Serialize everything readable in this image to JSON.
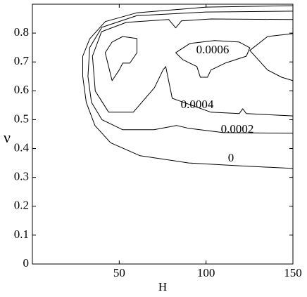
{
  "chart_data": {
    "type": "contour",
    "xlabel": "H",
    "ylabel": "ν",
    "xlim": [
      0,
      150
    ],
    "xticks": [
      50,
      100,
      150
    ],
    "ylim": [
      0,
      0.9
    ],
    "yticks": [
      0,
      0.1,
      0.2,
      0.3,
      0.4,
      0.5,
      0.6,
      0.7,
      0.8
    ],
    "color": "#000000",
    "levels": [
      0,
      0.0002,
      0.0004,
      0.0006
    ],
    "contours": [
      {
        "level": 0,
        "x": [
          150,
          100,
          60,
          42,
          33,
          29,
          29,
          31,
          36,
          45,
          62,
          90,
          120,
          150
        ],
        "y": [
          0.895,
          0.89,
          0.87,
          0.84,
          0.78,
          0.72,
          0.65,
          0.56,
          0.48,
          0.42,
          0.375,
          0.35,
          0.34,
          0.331
        ]
      },
      {
        "level": 0.0002,
        "x": [
          150,
          100,
          60,
          40,
          33,
          32,
          34,
          40,
          52,
          70,
          83,
          90,
          110,
          150
        ],
        "y": [
          0.876,
          0.873,
          0.86,
          0.82,
          0.75,
          0.65,
          0.56,
          0.5,
          0.465,
          0.465,
          0.48,
          0.47,
          0.455,
          0.453
        ]
      },
      {
        "level": 0.0004,
        "x": [
          150,
          123.2,
          121.1,
          119.1,
          102.8,
          80.5,
          76.8,
          75.2,
          70.3,
          58.1,
          43.9,
          36.2,
          34.6,
          39.8,
          54.1,
          78.5,
          82.5,
          85.8,
          102.8,
          150
        ],
        "y": [
          0.513,
          0.521,
          0.538,
          0.521,
          0.526,
          0.574,
          0.684,
          0.672,
          0.611,
          0.526,
          0.526,
          0.599,
          0.72,
          0.805,
          0.837,
          0.847,
          0.818,
          0.842,
          0.849,
          0.847
        ]
      },
      {
        "level": 0.0006,
        "x": [
          45.9,
          41.9,
          45.9,
          50,
          52,
          56.1,
          60.2,
          60.2,
          52,
          45.9
        ],
        "y": [
          0.769,
          0.732,
          0.635,
          0.672,
          0.696,
          0.696,
          0.732,
          0.781,
          0.788,
          0.769
        ]
      },
      {
        "level": 0.0006,
        "x": [
          82.5,
          90.7,
          104.9,
          119.1,
          125.2,
          123.2,
          111,
          102.8,
          100.8,
          96.7,
          94.7,
          86.6,
          82.5
        ],
        "y": [
          0.732,
          0.764,
          0.774,
          0.769,
          0.749,
          0.72,
          0.696,
          0.672,
          0.647,
          0.647,
          0.684,
          0.708,
          0.732
        ]
      },
      {
        "level": 0.0006,
        "x": [
          150,
          143.5,
          135.4,
          125.2,
          135.4,
          150
        ],
        "y": [
          0.635,
          0.647,
          0.672,
          0.74,
          0.788,
          0.798
        ]
      }
    ]
  }
}
